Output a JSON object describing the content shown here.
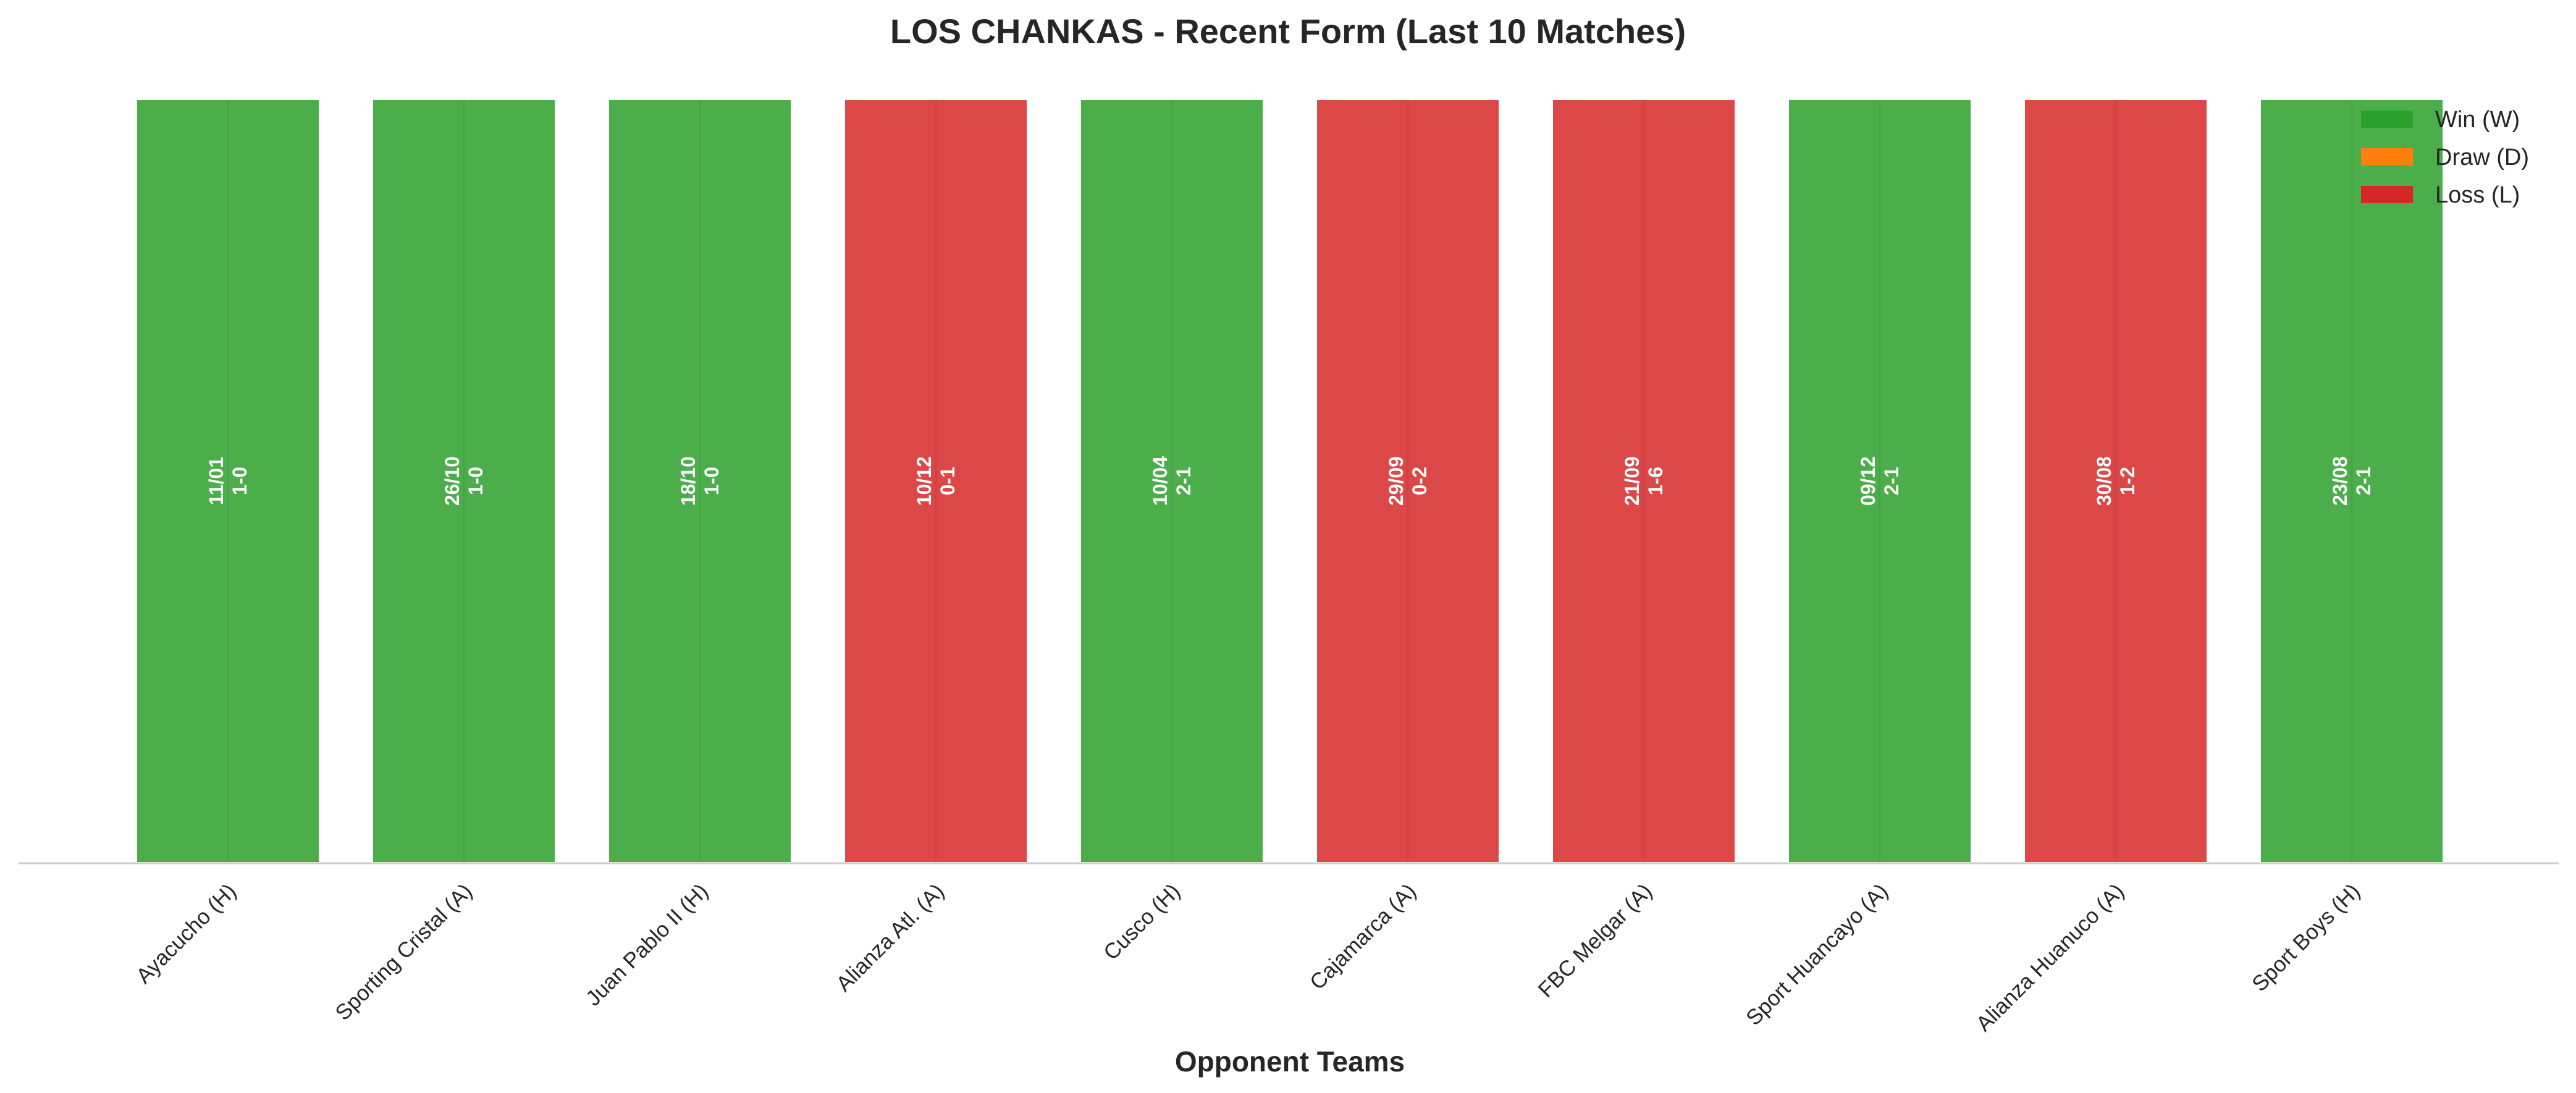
{
  "chart_data": {
    "type": "bar",
    "title": "LOS CHANKAS - Recent Form (Last 10 Matches)",
    "xlabel": "Opponent Teams",
    "ylabel": "",
    "ylim": [
      0,
      1
    ],
    "grid": false,
    "legend_position": "top-right",
    "categories": [
      "Ayacucho (H)",
      "Sporting Cristal (A)",
      "Juan Pablo II (H)",
      "Alianza Atl. (A)",
      "Cusco (H)",
      "Cajamarca (A)",
      "FBC Melgar (A)",
      "Sport Huancayo (A)",
      "Alianza Huanuco (A)",
      "Sport Boys (H)"
    ],
    "values": [
      1,
      1,
      1,
      1,
      1,
      1,
      1,
      1,
      1,
      1
    ],
    "results": [
      "W",
      "W",
      "W",
      "L",
      "W",
      "L",
      "L",
      "W",
      "L",
      "W"
    ],
    "dates": [
      "11/01",
      "26/10",
      "18/10",
      "10/12",
      "10/04",
      "29/09",
      "21/09",
      "09/12",
      "30/08",
      "23/08"
    ],
    "scores": [
      "1-0",
      "1-0",
      "1-0",
      "0-1",
      "2-1",
      "0-2",
      "1-6",
      "2-1",
      "1-2",
      "2-1"
    ],
    "legend": [
      {
        "key": "W",
        "label": "Win (W)",
        "color": "#2ca02c"
      },
      {
        "key": "D",
        "label": "Draw (D)",
        "color": "#ff7f0e"
      },
      {
        "key": "L",
        "label": "Loss (L)",
        "color": "#d62728"
      }
    ]
  }
}
